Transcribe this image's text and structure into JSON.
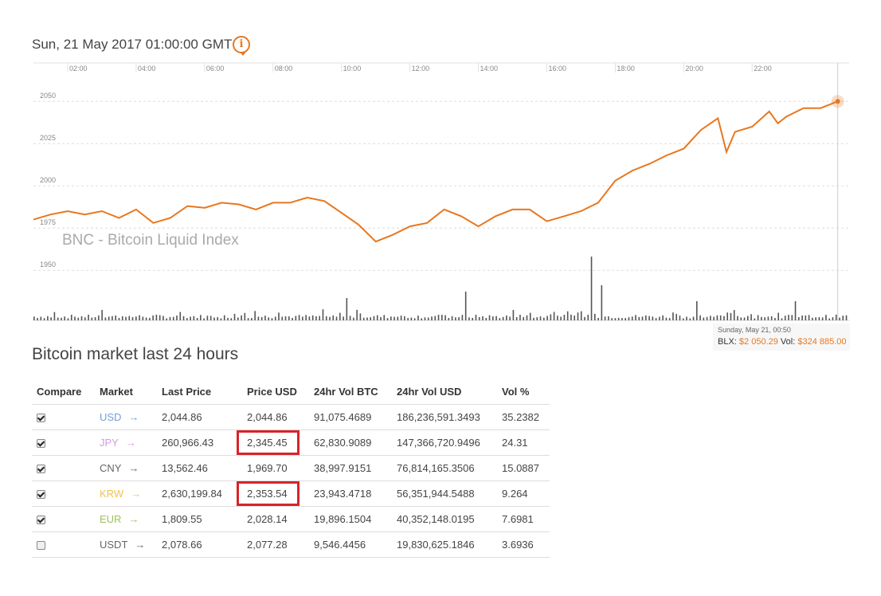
{
  "header": {
    "datetime": "Sun, 21 May 2017 01:00:00 GMT",
    "info_icon": "info-icon",
    "watermark": "BNC - Bitcoin Liquid Index"
  },
  "colors": {
    "accent": "#e8771f",
    "volume": "#555555",
    "grid": "#dddddd",
    "highlight": "#d8232a",
    "usd": "#6fa0d8",
    "jpy": "#cf9be0",
    "cny": "#666666",
    "krw": "#f2c24f",
    "eur": "#9cc35a",
    "usdt": "#666666"
  },
  "chart_data": {
    "type": "line",
    "title": "",
    "x_ticks": [
      "02:00",
      "04:00",
      "06:00",
      "08:00",
      "10:00",
      "12:00",
      "14:00",
      "16:00",
      "18:00",
      "20:00",
      "22:00"
    ],
    "x_range": [
      "01:00",
      "24:50"
    ],
    "ylim": [
      1935,
      2060
    ],
    "y_ticks": [
      1950,
      1975,
      2000,
      2025,
      2050
    ],
    "grid": true,
    "series": [
      {
        "kind": "price",
        "points": [
          [
            "01:00",
            1980
          ],
          [
            "01:30",
            1983
          ],
          [
            "02:00",
            1985
          ],
          [
            "02:30",
            1983
          ],
          [
            "03:00",
            1985
          ],
          [
            "03:30",
            1981
          ],
          [
            "04:00",
            1986
          ],
          [
            "04:30",
            1978
          ],
          [
            "05:00",
            1981
          ],
          [
            "05:30",
            1988
          ],
          [
            "06:00",
            1987
          ],
          [
            "06:30",
            1990
          ],
          [
            "07:00",
            1989
          ],
          [
            "07:30",
            1986
          ],
          [
            "08:00",
            1990
          ],
          [
            "08:30",
            1990
          ],
          [
            "09:00",
            1993
          ],
          [
            "09:30",
            1991
          ],
          [
            "10:00",
            1984
          ],
          [
            "10:30",
            1977
          ],
          [
            "11:00",
            1967
          ],
          [
            "11:30",
            1971
          ],
          [
            "12:00",
            1976
          ],
          [
            "12:30",
            1978
          ],
          [
            "13:00",
            1986
          ],
          [
            "13:30",
            1982
          ],
          [
            "14:00",
            1976
          ],
          [
            "14:30",
            1982
          ],
          [
            "15:00",
            1986
          ],
          [
            "15:30",
            1986
          ],
          [
            "16:00",
            1979
          ],
          [
            "16:30",
            1982
          ],
          [
            "17:00",
            1985
          ],
          [
            "17:30",
            1990
          ],
          [
            "18:00",
            2003
          ],
          [
            "18:30",
            2009
          ],
          [
            "19:00",
            2013
          ],
          [
            "19:30",
            2018
          ],
          [
            "20:00",
            2022
          ],
          [
            "20:30",
            2033
          ],
          [
            "21:00",
            2040
          ],
          [
            "21:15",
            2020
          ],
          [
            "21:30",
            2032
          ],
          [
            "22:00",
            2035
          ],
          [
            "22:30",
            2044
          ],
          [
            "22:45",
            2037
          ],
          [
            "23:00",
            2041
          ],
          [
            "23:30",
            2046
          ],
          [
            "24:00",
            2046
          ],
          [
            "24:30",
            2050
          ]
        ]
      },
      {
        "kind": "volume",
        "description": "per-interval traded volume bars (relative)",
        "x_range": [
          "01:00",
          "24:50"
        ],
        "count": 240,
        "spikes": [
          [
            "17:15",
            1.0
          ],
          [
            "17:35",
            0.55
          ],
          [
            "13:35",
            0.45
          ],
          [
            "10:10",
            0.35
          ],
          [
            "20:20",
            0.3
          ],
          [
            "23:15",
            0.3
          ]
        ]
      }
    ]
  },
  "tooltip": {
    "date": "Sunday, May 21, 00:50",
    "blx_label": "BLX:",
    "blx_value": "$2 050.29",
    "vol_label": "Vol:",
    "vol_value": "$324 885.00"
  },
  "market": {
    "title": "Bitcoin market last 24 hours",
    "columns": [
      "Compare",
      "Market",
      "Last Price",
      "Price USD",
      "24hr Vol BTC",
      "24hr Vol USD",
      "Vol %"
    ],
    "rows": [
      {
        "checked": true,
        "market": "USD",
        "color_key": "usd",
        "last": "2,044.86",
        "usd": "2,044.86",
        "vol_btc": "91,075.4689",
        "vol_usd": "186,236,591.3493",
        "vol_pct": "35.2382",
        "highlight": false
      },
      {
        "checked": true,
        "market": "JPY",
        "color_key": "jpy",
        "last": "260,966.43",
        "usd": "2,345.45",
        "vol_btc": "62,830.9089",
        "vol_usd": "147,366,720.9496",
        "vol_pct": "24.31",
        "highlight": true
      },
      {
        "checked": true,
        "market": "CNY",
        "color_key": "cny",
        "last": "13,562.46",
        "usd": "1,969.70",
        "vol_btc": "38,997.9151",
        "vol_usd": "76,814,165.3506",
        "vol_pct": "15.0887",
        "highlight": false
      },
      {
        "checked": true,
        "market": "KRW",
        "color_key": "krw",
        "last": "2,630,199.84",
        "usd": "2,353.54",
        "vol_btc": "23,943.4718",
        "vol_usd": "56,351,944.5488",
        "vol_pct": "9.264",
        "highlight": true
      },
      {
        "checked": true,
        "market": "EUR",
        "color_key": "eur",
        "last": "1,809.55",
        "usd": "2,028.14",
        "vol_btc": "19,896.1504",
        "vol_usd": "40,352,148.0195",
        "vol_pct": "7.6981",
        "highlight": false
      },
      {
        "checked": false,
        "market": "USDT",
        "color_key": "usdt",
        "last": "2,078.66",
        "usd": "2,077.28",
        "vol_btc": "9,546.4456",
        "vol_usd": "19,830,625.1846",
        "vol_pct": "3.6936",
        "highlight": false
      }
    ],
    "arrow": "→"
  }
}
